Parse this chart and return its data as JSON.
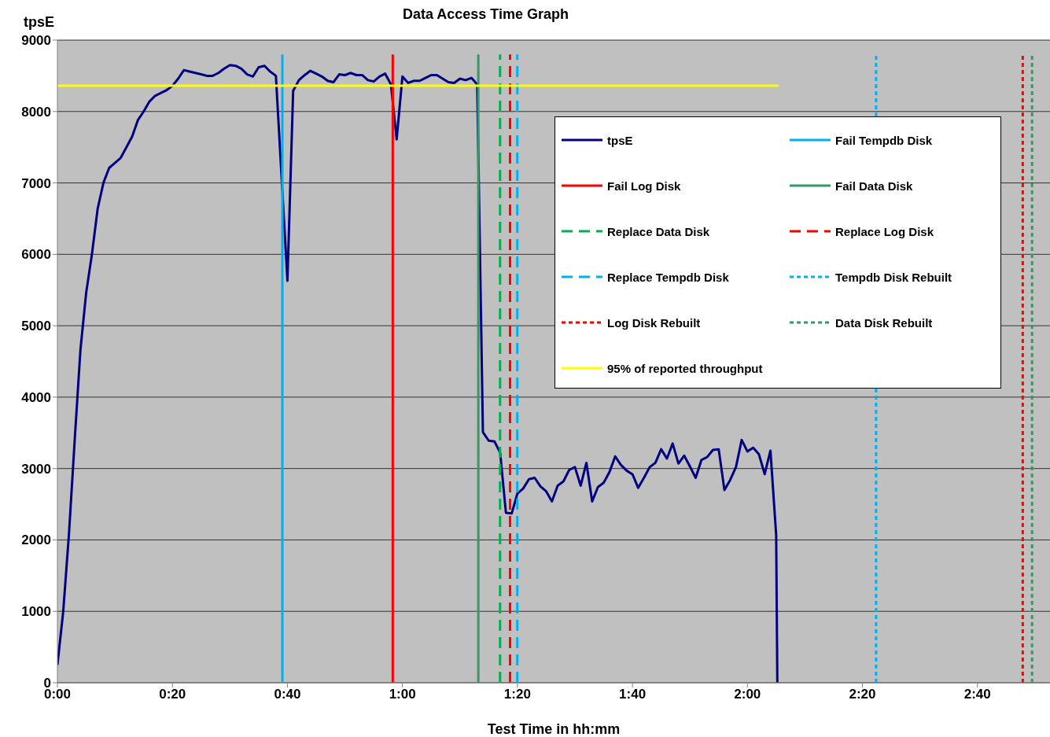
{
  "chart_data": {
    "type": "line",
    "title": "Data Access Time Graph",
    "xlabel": "Test Time in hh:mm",
    "ylabel": "tpsE",
    "xlim": [
      0,
      2.877
    ],
    "xticks": [
      {
        "value": 0,
        "label": "0:00"
      },
      {
        "value": 0.3333,
        "label": "0:20"
      },
      {
        "value": 0.6667,
        "label": "0:40"
      },
      {
        "value": 1,
        "label": "1:00"
      },
      {
        "value": 1.3333,
        "label": "1:20"
      },
      {
        "value": 1.6667,
        "label": "1:40"
      },
      {
        "value": 2,
        "label": "2:00"
      },
      {
        "value": 2.3333,
        "label": "2:20"
      },
      {
        "value": 2.6667,
        "label": "2:40"
      }
    ],
    "ylim": [
      0,
      9000
    ],
    "yticks": [
      0,
      1000,
      2000,
      3000,
      4000,
      5000,
      6000,
      7000,
      8000,
      9000
    ],
    "grid": "y",
    "legend": "top right",
    "marker": "none",
    "x": [
      0,
      0.0167,
      0.0333,
      0.05,
      0.0667,
      0.0833,
      0.1,
      0.1167,
      0.1333,
      0.15,
      0.1667,
      0.1833,
      0.2,
      0.2167,
      0.2333,
      0.25,
      0.2667,
      0.2833,
      0.3,
      0.3167,
      0.3333,
      0.35,
      0.3667,
      0.3833,
      0.4,
      0.4167,
      0.4333,
      0.45,
      0.4667,
      0.4833,
      0.5,
      0.5167,
      0.5333,
      0.55,
      0.5667,
      0.5833,
      0.6,
      0.6167,
      0.6333,
      0.65,
      0.6667,
      0.6833,
      0.7,
      0.7167,
      0.7333,
      0.75,
      0.7667,
      0.7833,
      0.8,
      0.8167,
      0.8333,
      0.85,
      0.8667,
      0.8833,
      0.9,
      0.9167,
      0.9333,
      0.95,
      0.9667,
      0.9833,
      1,
      1.0167,
      1.0333,
      1.05,
      1.0667,
      1.0833,
      1.1,
      1.1167,
      1.1333,
      1.15,
      1.1667,
      1.1833,
      1.2,
      1.2167,
      1.2333,
      1.25,
      1.2667,
      1.2833,
      1.3,
      1.3167,
      1.3333,
      1.35,
      1.3667,
      1.3833,
      1.4,
      1.4167,
      1.4333,
      1.45,
      1.4667,
      1.4833,
      1.5,
      1.5167,
      1.5333,
      1.55,
      1.5667,
      1.5833,
      1.6,
      1.6167,
      1.6333,
      1.65,
      1.6667,
      1.6833,
      1.7,
      1.7167,
      1.7333,
      1.75,
      1.7667,
      1.7833,
      1.8,
      1.8167,
      1.8333,
      1.85,
      1.8667,
      1.8833,
      1.9,
      1.9167,
      1.9333,
      1.95,
      1.9667,
      1.9833,
      2,
      2.0167,
      2.0333,
      2.05,
      2.0667,
      2.0833,
      2.0867
    ],
    "series": [
      {
        "name": "tpsE",
        "color": "#000080",
        "line_style": "solid",
        "values": [
          250,
          990,
          2070,
          3390,
          4660,
          5460,
          6000,
          6640,
          7000,
          7210,
          7280,
          7350,
          7500,
          7650,
          7880,
          8000,
          8140,
          8220,
          8260,
          8300,
          8360,
          8460,
          8580,
          8560,
          8540,
          8520,
          8500,
          8500,
          8540,
          8600,
          8650,
          8640,
          8600,
          8520,
          8490,
          8620,
          8640,
          8560,
          8500,
          7060,
          5630,
          8290,
          8440,
          8510,
          8570,
          8530,
          8490,
          8430,
          8410,
          8520,
          8510,
          8540,
          8510,
          8510,
          8440,
          8420,
          8490,
          8530,
          8380,
          7610,
          8490,
          8400,
          8430,
          8430,
          8470,
          8510,
          8510,
          8460,
          8410,
          8400,
          8460,
          8440,
          8470,
          8380,
          3510,
          3390,
          3380,
          3220,
          2380,
          2370,
          2650,
          2720,
          2850,
          2870,
          2750,
          2680,
          2540,
          2760,
          2820,
          2980,
          3020,
          2760,
          3080,
          2540,
          2740,
          2800,
          2950,
          3170,
          3050,
          2970,
          2920,
          2730,
          2870,
          3020,
          3080,
          3270,
          3140,
          3350,
          3070,
          3180,
          3030,
          2870,
          3120,
          3160,
          3260,
          3270,
          2700,
          2840,
          3020,
          3400,
          3240,
          3290,
          3200,
          2920,
          3250,
          2070,
          0
        ]
      },
      {
        "name": "Fail Tempdb Disk",
        "color": "#00b0f0",
        "line_style": "solid",
        "x": [
          0.652,
          0.652
        ],
        "values": [
          0,
          8800
        ]
      },
      {
        "name": "Fail Log Disk",
        "color": "#ff0000",
        "line_style": "solid",
        "x": [
          0.972,
          0.972
        ],
        "values": [
          0,
          8800
        ]
      },
      {
        "name": "Fail Data Disk",
        "color": "#339966",
        "line_style": "solid",
        "x": [
          1.22,
          1.22
        ],
        "values": [
          0,
          8800
        ]
      },
      {
        "name": "Replace Data Disk",
        "color": "#00b050",
        "line_style": "dashed",
        "x": [
          1.283,
          1.283
        ],
        "values": [
          0,
          8800
        ]
      },
      {
        "name": "Replace Log Disk",
        "color": "#ff0000",
        "line_style": "dashed",
        "x": [
          1.312,
          1.312
        ],
        "values": [
          0,
          8800
        ]
      },
      {
        "name": "Replace Tempdb Disk",
        "color": "#00b0f0",
        "line_style": "dashed",
        "x": [
          1.333,
          1.333
        ],
        "values": [
          0,
          8800
        ]
      },
      {
        "name": "Tempdb Disk Rebuilt",
        "color": "#00b0f0",
        "line_style": "dotted",
        "x": [
          2.373,
          2.373
        ],
        "values": [
          0,
          8800
        ]
      },
      {
        "name": "Log Disk Rebuilt",
        "color": "#ff0000",
        "line_style": "dotted",
        "x": [
          2.798,
          2.798
        ],
        "values": [
          0,
          8800
        ]
      },
      {
        "name": "Data Disk Rebuilt",
        "color": "#339966",
        "line_style": "dotted",
        "x": [
          2.825,
          2.825
        ],
        "values": [
          0,
          8800
        ]
      },
      {
        "name": "95% of reported throughput",
        "color": "#ffff00",
        "line_style": "solid",
        "x": [
          0,
          2.09
        ],
        "values": [
          8360,
          8360
        ]
      }
    ]
  }
}
